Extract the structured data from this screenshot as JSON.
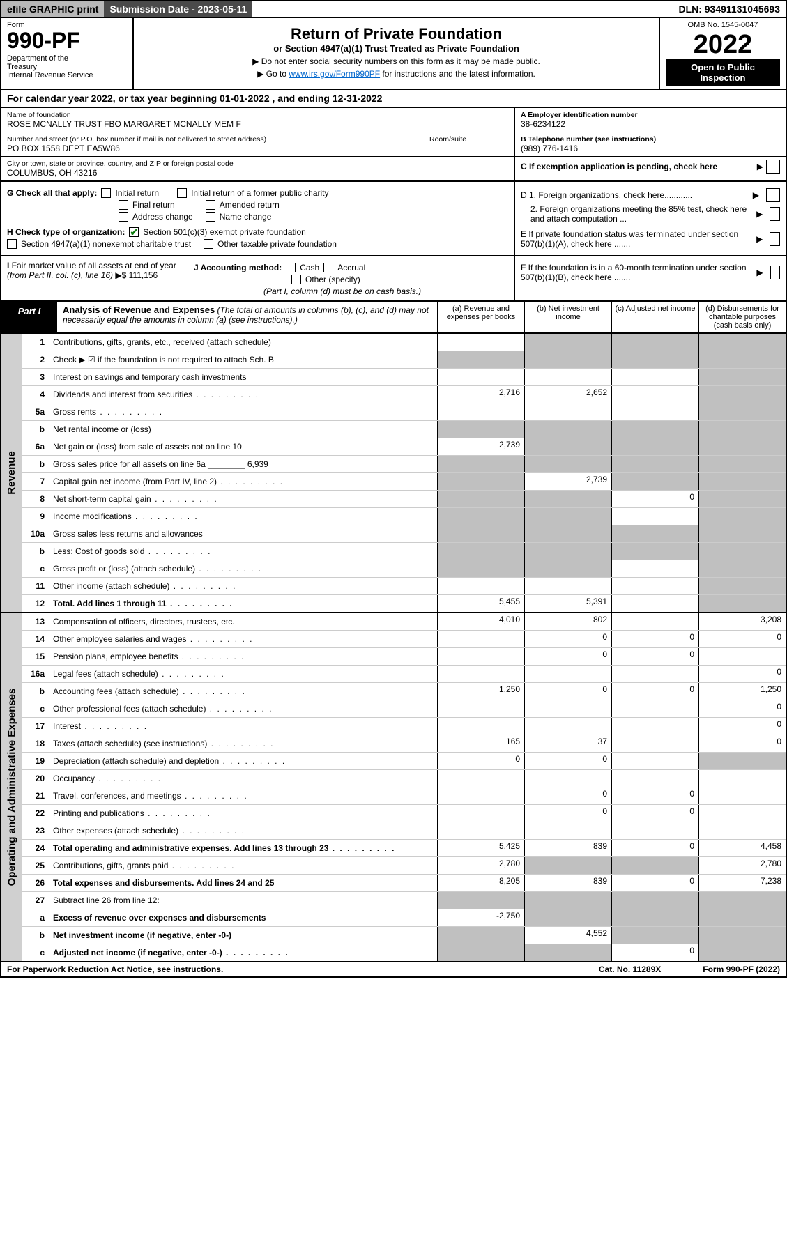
{
  "top": {
    "efile": "efile GRAPHIC print",
    "submission": "Submission Date - 2023-05-11",
    "dln": "DLN: 93491131045693"
  },
  "header": {
    "form_label": "Form",
    "form_num": "990-PF",
    "dept": "Department of the Treasury\nInternal Revenue Service",
    "title": "Return of Private Foundation",
    "subtitle": "or Section 4947(a)(1) Trust Treated as Private Foundation",
    "note1": "▶ Do not enter social security numbers on this form as it may be made public.",
    "note2_pre": "▶ Go to ",
    "note2_link": "www.irs.gov/Form990PF",
    "note2_post": " for instructions and the latest information.",
    "omb": "OMB No. 1545-0047",
    "year": "2022",
    "open": "Open to Public Inspection"
  },
  "cal": "For calendar year 2022, or tax year beginning 01-01-2022              , and ending 12-31-2022",
  "info": {
    "name_lbl": "Name of foundation",
    "name": "ROSE MCNALLY TRUST FBO MARGARET MCNALLY MEM F",
    "addr_lbl": "Number and street (or P.O. box number if mail is not delivered to street address)",
    "addr": "PO BOX 1558 DEPT EA5W86",
    "room_lbl": "Room/suite",
    "city_lbl": "City or town, state or province, country, and ZIP or foreign postal code",
    "city": "COLUMBUS, OH  43216",
    "a_lbl": "A Employer identification number",
    "a_val": "38-6234122",
    "b_lbl": "B Telephone number (see instructions)",
    "b_val": "(989) 776-1416",
    "c_lbl": "C If exemption application is pending, check here"
  },
  "checks": {
    "g": "G Check all that apply:",
    "g1": "Initial return",
    "g2": "Initial return of a former public charity",
    "g3": "Final return",
    "g4": "Amended return",
    "g5": "Address change",
    "g6": "Name change",
    "h": "H Check type of organization:",
    "h1": "Section 501(c)(3) exempt private foundation",
    "h2": "Section 4947(a)(1) nonexempt charitable trust",
    "h3": "Other taxable private foundation",
    "d1": "D 1. Foreign organizations, check here............",
    "d2": "2. Foreign organizations meeting the 85% test, check here and attach computation ...",
    "e": "E  If private foundation status was terminated under section 507(b)(1)(A), check here .......",
    "i": "I Fair market value of all assets at end of year (from Part II, col. (c), line 16) ▶$ ",
    "i_val": "111,156",
    "j": "J Accounting method:",
    "j1": "Cash",
    "j2": "Accrual",
    "j3": "Other (specify)",
    "j_note": "(Part I, column (d) must be on cash basis.)",
    "f": "F  If the foundation is in a 60-month termination under section 507(b)(1)(B), check here ......."
  },
  "part": {
    "tag": "Part I",
    "title": "Analysis of Revenue and Expenses",
    "note": " (The total of amounts in columns (b), (c), and (d) may not necessarily equal the amounts in column (a) (see instructions).)",
    "col_a": "(a)  Revenue and expenses per books",
    "col_b": "(b)  Net investment income",
    "col_c": "(c)  Adjusted net income",
    "col_d": "(d)  Disbursements for charitable purposes (cash basis only)"
  },
  "vlabels": {
    "revenue": "Revenue",
    "expenses": "Operating and Administrative Expenses"
  },
  "rows": [
    {
      "n": "1",
      "d": "Contributions, gifts, grants, etc., received (attach schedule)",
      "a": "",
      "b": "g",
      "c": "g",
      "dd": "g"
    },
    {
      "n": "2",
      "d": "Check ▶ ☑ if the foundation is not required to attach Sch. B",
      "a": "g",
      "b": "g",
      "c": "g",
      "dd": "g"
    },
    {
      "n": "3",
      "d": "Interest on savings and temporary cash investments",
      "a": "",
      "b": "",
      "c": "",
      "dd": "g"
    },
    {
      "n": "4",
      "d": "Dividends and interest from securities",
      "dots": true,
      "a": "2,716",
      "b": "2,652",
      "c": "",
      "dd": "g"
    },
    {
      "n": "5a",
      "d": "Gross rents",
      "dots": true,
      "a": "",
      "b": "",
      "c": "",
      "dd": "g"
    },
    {
      "n": "b",
      "d": "Net rental income or (loss)",
      "a": "g",
      "b": "g",
      "c": "g",
      "dd": "g"
    },
    {
      "n": "6a",
      "d": "Net gain or (loss) from sale of assets not on line 10",
      "a": "2,739",
      "b": "g",
      "c": "g",
      "dd": "g"
    },
    {
      "n": "b",
      "d": "Gross sales price for all assets on line 6a ________ 6,939",
      "a": "g",
      "b": "g",
      "c": "g",
      "dd": "g"
    },
    {
      "n": "7",
      "d": "Capital gain net income (from Part IV, line 2)",
      "dots": true,
      "a": "g",
      "b": "2,739",
      "c": "g",
      "dd": "g"
    },
    {
      "n": "8",
      "d": "Net short-term capital gain",
      "dots": true,
      "a": "g",
      "b": "g",
      "c": "0",
      "dd": "g"
    },
    {
      "n": "9",
      "d": "Income modifications",
      "dots": true,
      "a": "g",
      "b": "g",
      "c": "",
      "dd": "g"
    },
    {
      "n": "10a",
      "d": "Gross sales less returns and allowances",
      "a": "g",
      "b": "g",
      "c": "g",
      "dd": "g"
    },
    {
      "n": "b",
      "d": "Less: Cost of goods sold",
      "dots": true,
      "a": "g",
      "b": "g",
      "c": "g",
      "dd": "g"
    },
    {
      "n": "c",
      "d": "Gross profit or (loss) (attach schedule)",
      "dots": true,
      "a": "g",
      "b": "g",
      "c": "",
      "dd": "g"
    },
    {
      "n": "11",
      "d": "Other income (attach schedule)",
      "dots": true,
      "a": "",
      "b": "",
      "c": "",
      "dd": "g"
    },
    {
      "n": "12",
      "d": "Total. Add lines 1 through 11",
      "dots": true,
      "bold": true,
      "a": "5,455",
      "b": "5,391",
      "c": "",
      "dd": "g"
    },
    {
      "n": "13",
      "d": "Compensation of officers, directors, trustees, etc.",
      "a": "4,010",
      "b": "802",
      "c": "",
      "dd": "3,208"
    },
    {
      "n": "14",
      "d": "Other employee salaries and wages",
      "dots": true,
      "a": "",
      "b": "0",
      "c": "0",
      "dd": "0"
    },
    {
      "n": "15",
      "d": "Pension plans, employee benefits",
      "dots": true,
      "a": "",
      "b": "0",
      "c": "0",
      "dd": ""
    },
    {
      "n": "16a",
      "d": "Legal fees (attach schedule)",
      "dots": true,
      "a": "",
      "b": "",
      "c": "",
      "dd": "0"
    },
    {
      "n": "b",
      "d": "Accounting fees (attach schedule)",
      "dots": true,
      "a": "1,250",
      "b": "0",
      "c": "0",
      "dd": "1,250"
    },
    {
      "n": "c",
      "d": "Other professional fees (attach schedule)",
      "dots": true,
      "a": "",
      "b": "",
      "c": "",
      "dd": "0"
    },
    {
      "n": "17",
      "d": "Interest",
      "dots": true,
      "a": "",
      "b": "",
      "c": "",
      "dd": "0"
    },
    {
      "n": "18",
      "d": "Taxes (attach schedule) (see instructions)",
      "dots": true,
      "a": "165",
      "b": "37",
      "c": "",
      "dd": "0"
    },
    {
      "n": "19",
      "d": "Depreciation (attach schedule) and depletion",
      "dots": true,
      "a": "0",
      "b": "0",
      "c": "",
      "dd": "g"
    },
    {
      "n": "20",
      "d": "Occupancy",
      "dots": true,
      "a": "",
      "b": "",
      "c": "",
      "dd": ""
    },
    {
      "n": "21",
      "d": "Travel, conferences, and meetings",
      "dots": true,
      "a": "",
      "b": "0",
      "c": "0",
      "dd": ""
    },
    {
      "n": "22",
      "d": "Printing and publications",
      "dots": true,
      "a": "",
      "b": "0",
      "c": "0",
      "dd": ""
    },
    {
      "n": "23",
      "d": "Other expenses (attach schedule)",
      "dots": true,
      "a": "",
      "b": "",
      "c": "",
      "dd": ""
    },
    {
      "n": "24",
      "d": "Total operating and administrative expenses. Add lines 13 through 23",
      "dots": true,
      "bold": true,
      "a": "5,425",
      "b": "839",
      "c": "0",
      "dd": "4,458"
    },
    {
      "n": "25",
      "d": "Contributions, gifts, grants paid",
      "dots": true,
      "a": "2,780",
      "b": "g",
      "c": "g",
      "dd": "2,780"
    },
    {
      "n": "26",
      "d": "Total expenses and disbursements. Add lines 24 and 25",
      "bold": true,
      "a": "8,205",
      "b": "839",
      "c": "0",
      "dd": "7,238"
    },
    {
      "n": "27",
      "d": "Subtract line 26 from line 12:",
      "a": "g",
      "b": "g",
      "c": "g",
      "dd": "g"
    },
    {
      "n": "a",
      "d": "Excess of revenue over expenses and disbursements",
      "bold": true,
      "a": "-2,750",
      "b": "g",
      "c": "g",
      "dd": "g"
    },
    {
      "n": "b",
      "d": "Net investment income (if negative, enter -0-)",
      "bold": true,
      "a": "g",
      "b": "4,552",
      "c": "g",
      "dd": "g"
    },
    {
      "n": "c",
      "d": "Adjusted net income (if negative, enter -0-)",
      "dots": true,
      "bold": true,
      "a": "g",
      "b": "g",
      "c": "0",
      "dd": "g"
    }
  ],
  "footer": {
    "left": "For Paperwork Reduction Act Notice, see instructions.",
    "mid": "Cat. No. 11289X",
    "right": "Form 990-PF (2022)"
  },
  "colors": {
    "grey_bg": "#c0c0c0",
    "dark_bg": "#4a4a4a",
    "light_grey": "#b8b8b8",
    "link": "#0066cc",
    "check": "#0a7a0a"
  }
}
